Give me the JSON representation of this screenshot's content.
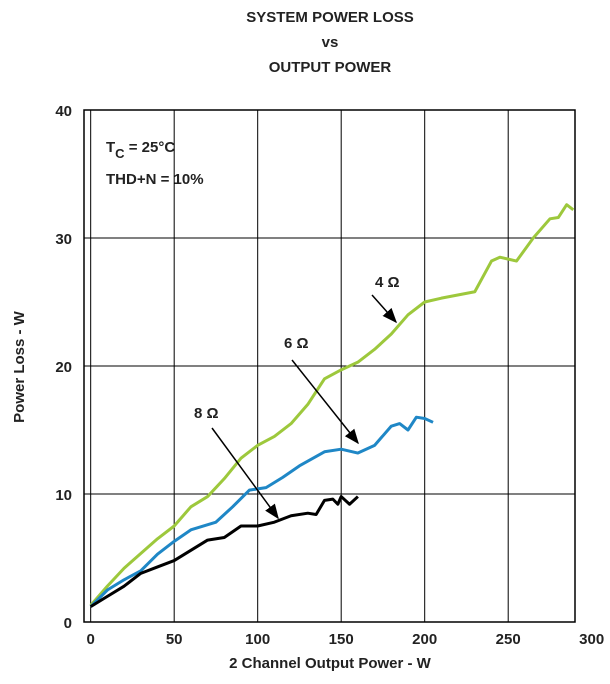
{
  "chart_data": {
    "type": "line",
    "title": [
      "SYSTEM POWER LOSS",
      "vs",
      "OUTPUT POWER"
    ],
    "xlabel": "2 Channel Output Power - W",
    "ylabel": "Power Loss - W",
    "annotation": {
      "t": "T",
      "sub": "C",
      "rest": " = 25°C",
      "line2": "THD+N = 10%"
    },
    "xlim": [
      -4,
      290
    ],
    "xticks": [
      0,
      50,
      100,
      150,
      200,
      250,
      300
    ],
    "ylim": [
      0,
      40
    ],
    "yticks": [
      0,
      10,
      20,
      30,
      40
    ],
    "grid": true,
    "series": [
      {
        "name": "4 Ω",
        "color": "#9dc83c",
        "x": [
          0,
          10,
          20,
          40,
          50,
          60,
          70,
          80,
          90,
          100,
          110,
          120,
          130,
          140,
          150,
          160,
          170,
          180,
          190,
          200,
          210,
          230,
          240,
          245,
          255,
          265,
          275,
          280,
          285,
          289
        ],
        "values": [
          1.3,
          2.8,
          4.2,
          6.5,
          7.5,
          9,
          9.8,
          11.2,
          12.8,
          13.8,
          14.5,
          15.5,
          17,
          19,
          19.7,
          20.3,
          21.3,
          22.5,
          24,
          25,
          25.3,
          25.8,
          28.2,
          28.5,
          28.2,
          30,
          31.5,
          31.6,
          32.6,
          32.2
        ]
      },
      {
        "name": "6 Ω",
        "color": "#1f87c6",
        "x": [
          0,
          10,
          20,
          30,
          40,
          50,
          60,
          75,
          85,
          95,
          105,
          115,
          125,
          140,
          150,
          160,
          170,
          180,
          185,
          190,
          195,
          200,
          205
        ],
        "values": [
          1.2,
          2.5,
          3.3,
          4,
          5.3,
          6.3,
          7.2,
          7.8,
          9,
          10.3,
          10.5,
          11.3,
          12.2,
          13.3,
          13.5,
          13.2,
          13.8,
          15.3,
          15.5,
          15,
          16,
          15.9,
          15.6
        ]
      },
      {
        "name": "8 Ω",
        "color": "#000000",
        "x": [
          0,
          10,
          20,
          30,
          40,
          50,
          60,
          70,
          80,
          90,
          100,
          110,
          120,
          130,
          135,
          140,
          145,
          148,
          150,
          155,
          160
        ],
        "values": [
          1.2,
          2,
          2.8,
          3.8,
          4.3,
          4.8,
          5.6,
          6.4,
          6.6,
          7.5,
          7.5,
          7.8,
          8.3,
          8.5,
          8.4,
          9.5,
          9.6,
          9.2,
          9.8,
          9.2,
          9.8
        ]
      }
    ]
  }
}
